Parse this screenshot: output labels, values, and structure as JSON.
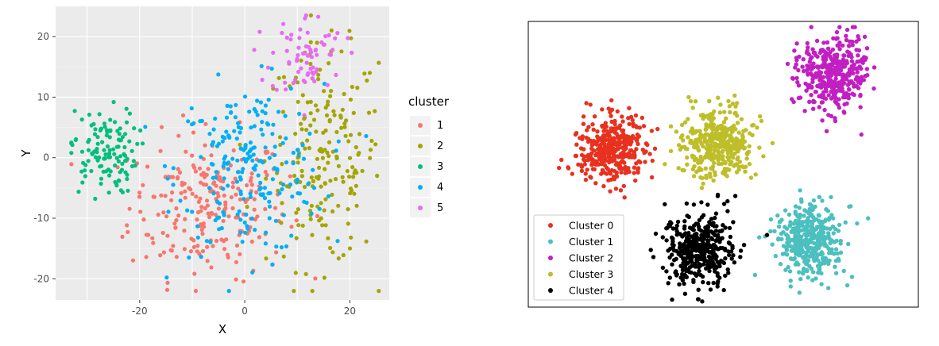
{
  "chart_data": [
    {
      "type": "scatter",
      "xlabel": "X",
      "ylabel": "Y",
      "xlim": [
        -36,
        27.5
      ],
      "ylim": [
        -23.5,
        25
      ],
      "x_ticks": [
        -20,
        0,
        20
      ],
      "y_ticks": [
        -20,
        -10,
        0,
        10,
        20
      ],
      "x_tick_labels": [
        "-20",
        "0",
        "20"
      ],
      "y_tick_labels": [
        "-20",
        "-10",
        "0",
        "10",
        "20"
      ],
      "grid": true,
      "legend": {
        "title": "cluster",
        "position": "right"
      },
      "series": [
        {
          "name": "1",
          "color": "#F8766D",
          "count": 230,
          "center": [
            -7,
            -8
          ],
          "spread": [
            7.5,
            6
          ]
        },
        {
          "name": "2",
          "color": "#A3A500",
          "count": 200,
          "center": [
            15,
            0
          ],
          "spread": [
            5.5,
            9
          ]
        },
        {
          "name": "3",
          "color": "#00BF7D",
          "count": 120,
          "center": [
            -27,
            1
          ],
          "spread": [
            3.2,
            3.5
          ]
        },
        {
          "name": "4",
          "color": "#00B0F6",
          "count": 220,
          "center": [
            1,
            -2
          ],
          "spread": [
            7,
            7
          ]
        },
        {
          "name": "5",
          "color": "#E76BF3",
          "count": 70,
          "center": [
            12,
            17
          ],
          "spread": [
            3.5,
            3.5
          ]
        }
      ]
    },
    {
      "type": "scatter",
      "grid": false,
      "xlim": [
        0,
        100
      ],
      "ylim": [
        0,
        100
      ],
      "legend": {
        "position": "bottom-left"
      },
      "series": [
        {
          "name": "Cluster 0",
          "color": "#E8311F",
          "count": 380,
          "center": [
            21.5,
            55
          ],
          "spread": [
            4.5,
            6
          ]
        },
        {
          "name": "Cluster 1",
          "color": "#4CBFBF",
          "count": 380,
          "center": [
            72,
            23
          ],
          "spread": [
            4.3,
            6.5
          ]
        },
        {
          "name": "Cluster 2",
          "color": "#C21FC2",
          "count": 380,
          "center": [
            78,
            82
          ],
          "spread": [
            4.3,
            6.5
          ]
        },
        {
          "name": "Cluster 3",
          "color": "#BEBE2A",
          "count": 380,
          "center": [
            48.5,
            57
          ],
          "spread": [
            4.5,
            6
          ]
        },
        {
          "name": "Cluster 4",
          "color": "#000000",
          "count": 380,
          "center": [
            44,
            20
          ],
          "spread": [
            4.5,
            6.5
          ]
        }
      ]
    }
  ]
}
